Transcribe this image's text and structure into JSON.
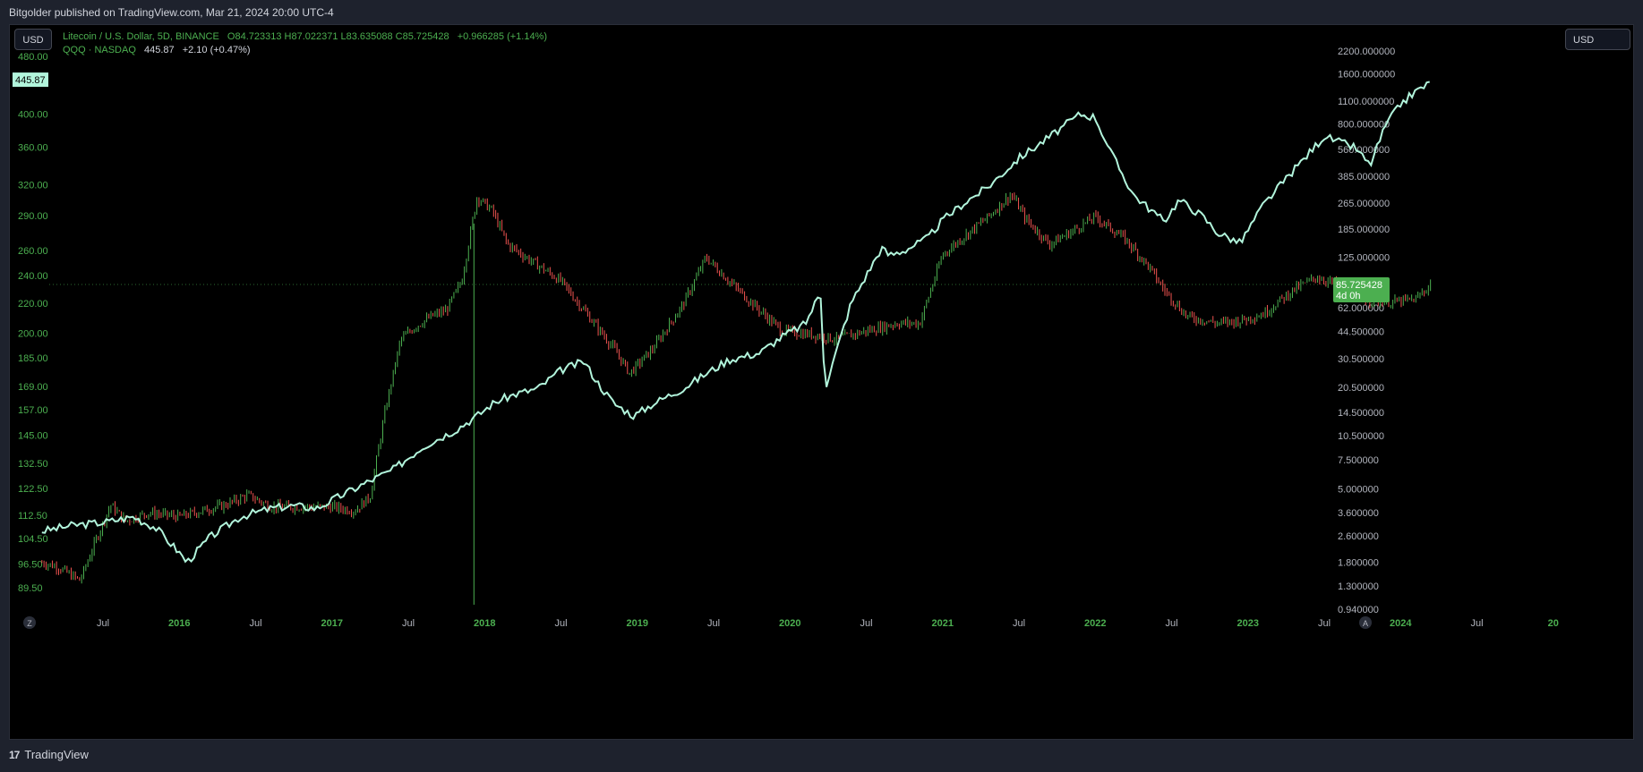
{
  "publish_note": "Bitgolder published on TradingView.com, Mar 21, 2024 20:00 UTC-4",
  "currency_left": "USD",
  "currency_right": "USD",
  "legend": {
    "ltc_name": "Litecoin / U.S. Dollar, 5D, BINANCE",
    "ltc_ohlc": "O84.723313  H87.022371  L83.635088  C85.725428",
    "ltc_change": "+0.966285 (+1.14%)",
    "qqq_name": "QQQ · NASDAQ",
    "qqq_last": "445.87",
    "qqq_change": "+2.10 (+0.47%)"
  },
  "price_tags": {
    "qqq": "445.87",
    "ltc_price": "85.725428",
    "ltc_countdown": "4d 0h"
  },
  "colors": {
    "up": "#4caf50",
    "down": "#ef5350",
    "qqq_line": "#b2f5dc",
    "axis_left_text": "#4caf50",
    "axis_right_text": "#b2b5be",
    "ltc_tag": "#4caf50",
    "qqq_tag": "#b2f5dc"
  },
  "footer_brand": "TradingView",
  "footer_logo": "17",
  "corner_z": "Z",
  "corner_a": "A",
  "chart_data": {
    "type": "line",
    "left_axis_ticks": [
      "480.00",
      "400.00",
      "360.00",
      "320.00",
      "290.00",
      "260.00",
      "240.00",
      "220.00",
      "200.00",
      "185.00",
      "169.00",
      "157.00",
      "145.00",
      "132.50",
      "122.50",
      "112.50",
      "104.50",
      "96.50",
      "89.50"
    ],
    "right_axis_ticks": [
      "2200.000000",
      "1600.000000",
      "1100.000000",
      "800.000000",
      "560.000000",
      "385.000000",
      "265.000000",
      "185.000000",
      "125.000000",
      "62.000000",
      "44.500000",
      "30.500000",
      "20.500000",
      "14.500000",
      "10.500000",
      "7.500000",
      "5.000000",
      "3.600000",
      "2.600000",
      "1.800000",
      "1.300000",
      "0.940000"
    ],
    "x_ticks": [
      "Jul",
      "2016",
      "Jul",
      "2017",
      "Jul",
      "2018",
      "Jul",
      "2019",
      "Jul",
      "2020",
      "Jul",
      "2021",
      "Jul",
      "2022",
      "Jul",
      "2023",
      "Jul",
      "2024",
      "Jul",
      "20"
    ],
    "series": [
      {
        "name": "QQQ · NASDAQ",
        "axis": "left",
        "x": [
          2015.1,
          2015.3,
          2015.5,
          2015.7,
          2015.85,
          2016.0,
          2016.05,
          2016.2,
          2016.4,
          2016.6,
          2016.75,
          2016.9,
          2017.0,
          2017.2,
          2017.4,
          2017.6,
          2017.8,
          2017.95,
          2018.05,
          2018.1,
          2018.2,
          2018.35,
          2018.5,
          2018.65,
          2018.75,
          2018.85,
          2018.98,
          2019.1,
          2019.3,
          2019.45,
          2019.6,
          2019.8,
          2019.95,
          2020.1,
          2020.2,
          2020.23,
          2020.4,
          2020.6,
          2020.65,
          2020.75,
          2020.9,
          2021.0,
          2021.15,
          2021.3,
          2021.5,
          2021.7,
          2021.9,
          2022.0,
          2022.1,
          2022.25,
          2022.45,
          2022.55,
          2022.7,
          2022.8,
          2022.95,
          2023.1,
          2023.3,
          2023.5,
          2023.6,
          2023.7,
          2023.8,
          2023.9,
          2024.0,
          2024.1,
          2024.2
        ],
        "values": [
          107,
          109,
          110,
          112,
          108,
          100,
          97,
          105,
          112,
          115,
          116,
          115,
          118,
          124,
          130,
          140,
          147,
          154,
          160,
          162,
          165,
          168,
          178,
          183,
          170,
          160,
          154,
          160,
          168,
          176,
          184,
          188,
          198,
          206,
          228,
          168,
          220,
          262,
          256,
          260,
          270,
          286,
          303,
          318,
          348,
          372,
          400,
          396,
          355,
          310,
          285,
          305,
          290,
          275,
          266,
          300,
          335,
          373,
          366,
          360,
          340,
          385,
          413,
          430,
          442
        ]
      },
      {
        "name": "Litecoin / U.S. Dollar, 5D, BINANCE",
        "axis": "right",
        "x": [
          2015.1,
          2015.2,
          2015.35,
          2015.45,
          2015.55,
          2015.65,
          2015.8,
          2016.0,
          2016.2,
          2016.3,
          2016.45,
          2016.6,
          2016.8,
          2017.0,
          2017.15,
          2017.25,
          2017.35,
          2017.45,
          2017.55,
          2017.65,
          2017.75,
          2017.85,
          2017.95,
          2018.05,
          2018.15,
          2018.3,
          2018.5,
          2018.65,
          2018.85,
          2018.95,
          2019.1,
          2019.3,
          2019.45,
          2019.6,
          2019.8,
          2019.95,
          2020.2,
          2020.3,
          2020.5,
          2020.7,
          2020.85,
          2021.0,
          2021.15,
          2021.3,
          2021.45,
          2021.55,
          2021.7,
          2021.85,
          2022.0,
          2022.2,
          2022.35,
          2022.45,
          2022.6,
          2022.8,
          2022.95,
          2023.1,
          2023.3,
          2023.45,
          2023.6,
          2023.75,
          2023.95,
          2024.1,
          2024.2
        ],
        "values": [
          1.8,
          1.7,
          1.4,
          2.4,
          4.0,
          3.2,
          3.6,
          3.4,
          3.8,
          4.0,
          4.6,
          3.9,
          3.9,
          3.9,
          3.7,
          4.5,
          15,
          40,
          48,
          55,
          60,
          90,
          290,
          240,
          150,
          120,
          90,
          60,
          35,
          25,
          35,
          65,
          125,
          90,
          60,
          45,
          42,
          40,
          45,
          50,
          50,
          130,
          170,
          220,
          300,
          210,
          150,
          180,
          220,
          160,
          110,
          80,
          55,
          50,
          52,
          57,
          80,
          95,
          85,
          70,
          67,
          70,
          86
        ]
      }
    ],
    "left_scale": "log",
    "right_scale": "log",
    "grid": false
  }
}
